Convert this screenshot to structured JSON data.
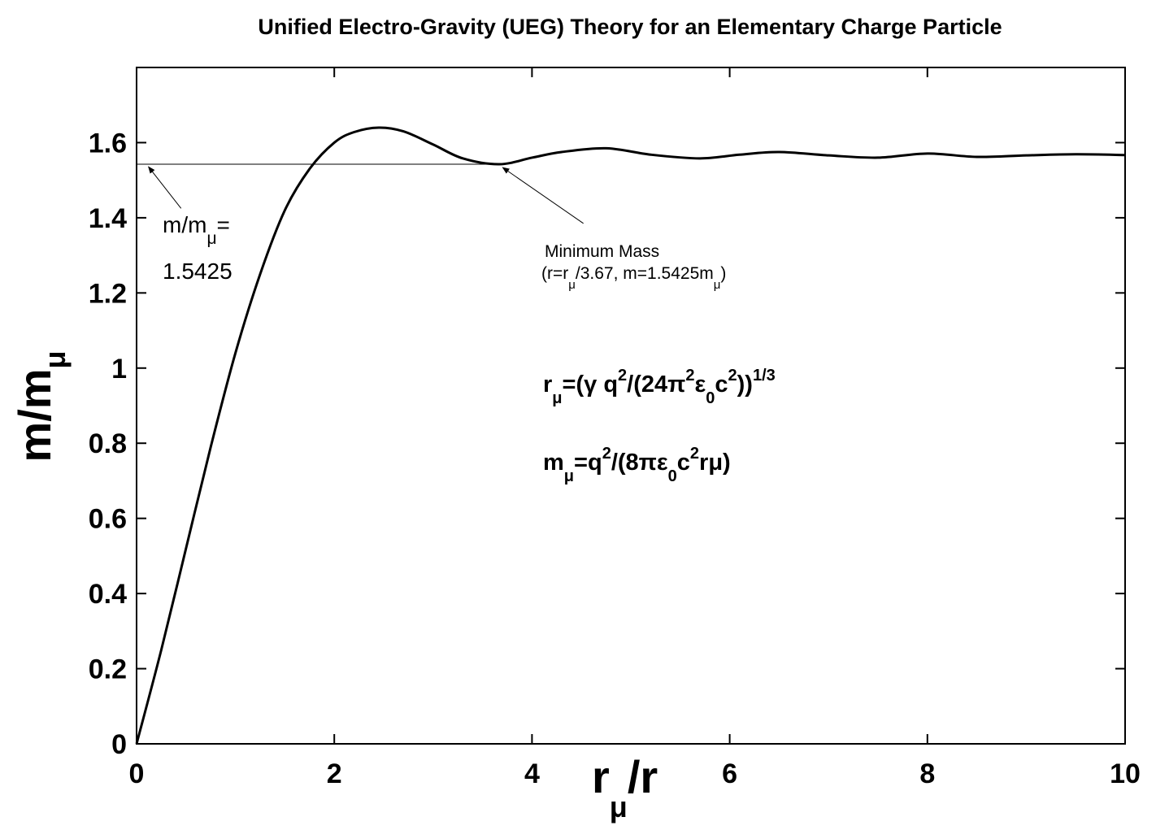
{
  "chart_data": {
    "type": "line",
    "title": "Unified Electro-Gravity (UEG) Theory for an Elementary Charge Particle",
    "xlabel": {
      "main": "r",
      "sub": "μ",
      "rest": "/r"
    },
    "ylabel": {
      "main": "m/m",
      "sub": "μ"
    },
    "xlim": [
      0,
      10
    ],
    "ylim": [
      0,
      1.8
    ],
    "xticks": [
      "0",
      "2",
      "4",
      "6",
      "8",
      "10"
    ],
    "yticks": [
      "0",
      "0.2",
      "0.4",
      "0.6",
      "0.8",
      "1",
      "1.2",
      "1.4",
      "1.6"
    ],
    "grid": false,
    "series": [
      {
        "color": "#000000",
        "x": [
          0,
          0.25,
          0.5,
          0.75,
          1.0,
          1.25,
          1.5,
          1.75,
          2.0,
          2.2,
          2.45,
          2.7,
          3.0,
          3.3,
          3.67,
          4.0,
          4.3,
          4.75,
          5.2,
          5.7,
          6.1,
          6.5,
          7.0,
          7.5,
          8.0,
          8.5,
          9.0,
          9.5,
          10.0
        ],
        "y": [
          0,
          0.25,
          0.52,
          0.79,
          1.04,
          1.25,
          1.42,
          1.53,
          1.6,
          1.628,
          1.64,
          1.63,
          1.595,
          1.558,
          1.5425,
          1.56,
          1.575,
          1.585,
          1.568,
          1.558,
          1.568,
          1.575,
          1.566,
          1.56,
          1.571,
          1.562,
          1.566,
          1.569,
          1.567
        ]
      }
    ],
    "reference_line": {
      "y": 1.5425,
      "x": [
        0,
        3.67
      ]
    },
    "annotations": [
      {
        "id": "left",
        "line1": "m/m",
        "line1_sub": "μ",
        "line1_tail": "=",
        "line2": "1.5425",
        "arrow_to": [
          0.12,
          1.5425
        ]
      },
      {
        "id": "min",
        "line1": "Minimum Mass",
        "line2_a": "(r=r",
        "line2_sub1": "μ",
        "line2_b": "/3.67, m=1.5425m",
        "line2_sub2": "μ",
        "line2_c": ")",
        "arrow_to": [
          3.67,
          1.5425
        ]
      }
    ],
    "equations": {
      "eq1": {
        "a": "r",
        "a_sub": "μ",
        "b": "=(γ q",
        "b_sup": "2",
        "c": "/(24π",
        "c_sup": "2",
        "d": "ε",
        "d_sub": "0",
        "e": "c",
        "e_sup": "2",
        "f": "))",
        "f_sup": "1/3"
      },
      "eq2": {
        "a": "m",
        "a_sub": "μ",
        "b": "=q",
        "b_sup": "2",
        "c": "/(8πε",
        "c_sub": "0",
        "d": "c",
        "d_sup": "2",
        "e": "rμ)"
      }
    }
  }
}
